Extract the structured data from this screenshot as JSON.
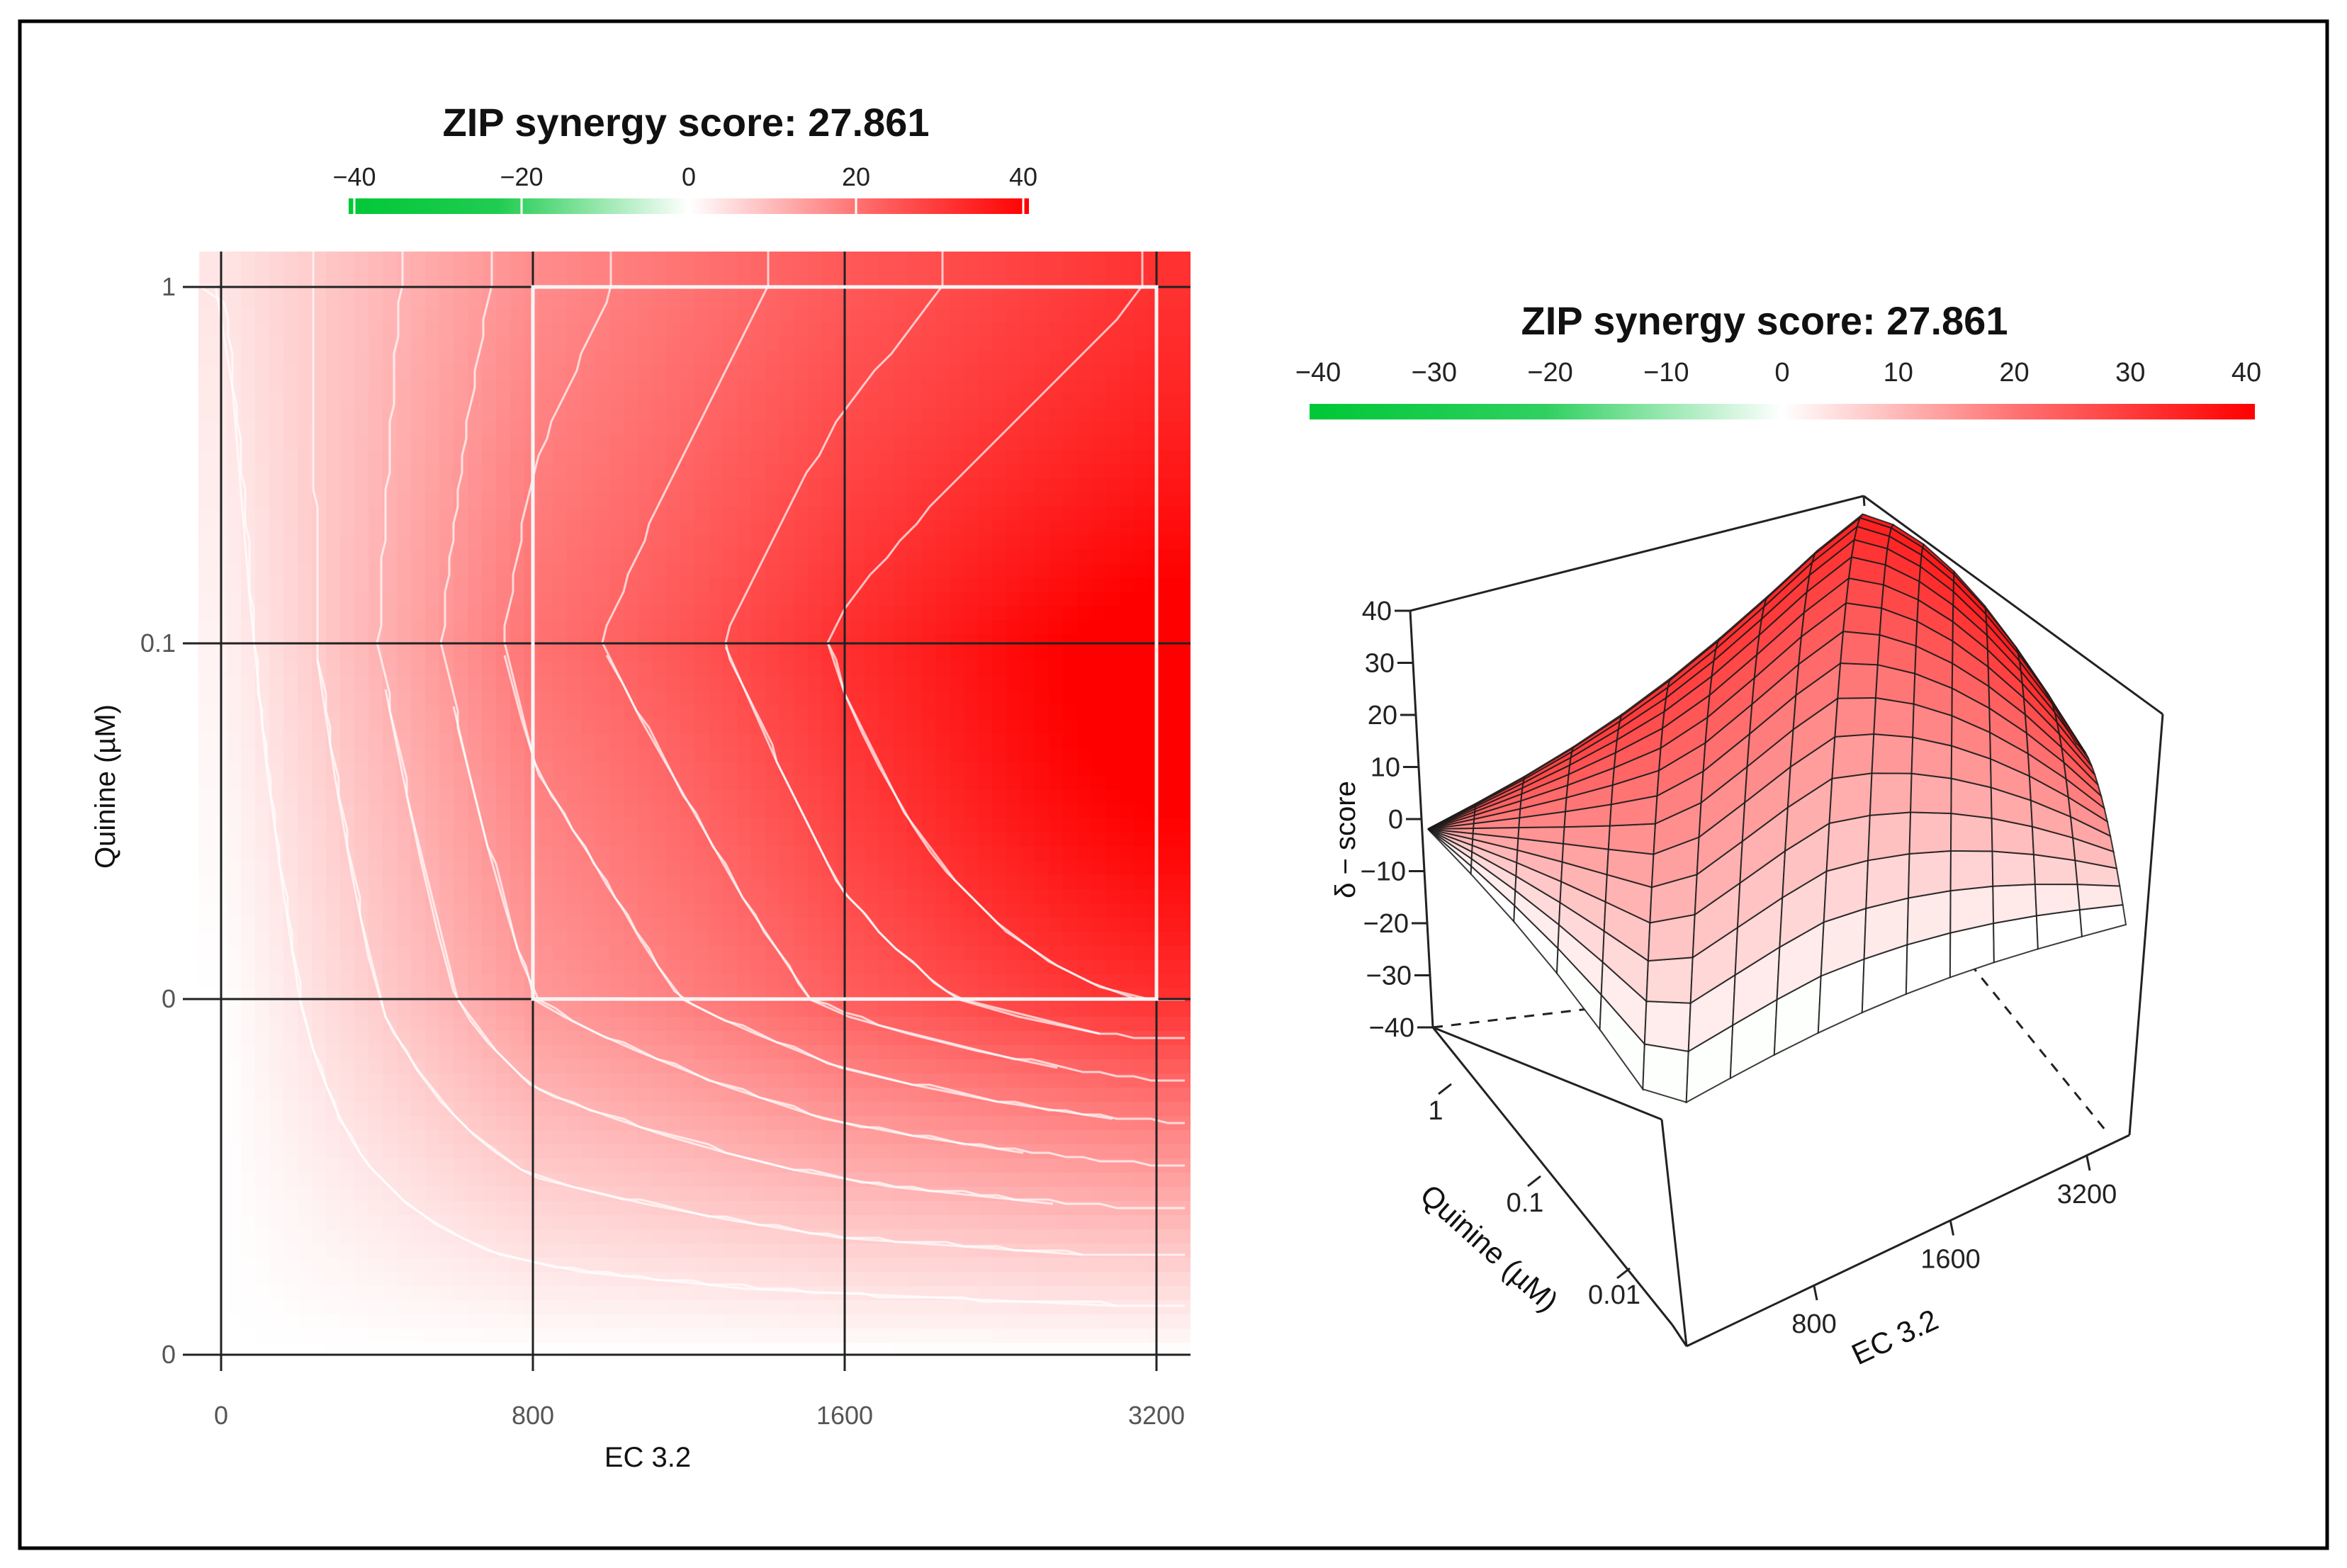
{
  "colors": {
    "neg": "#00c837",
    "mid": "#ffffff",
    "pos": "#ff0000"
  },
  "chart_data": [
    {
      "type": "heatmap",
      "title": "ZIP synergy score: 27.861",
      "xlabel": "EC 3.2",
      "ylabel": "Quinine (µM)",
      "x_ticks": [
        "0",
        "800",
        "1600",
        "3200"
      ],
      "y_ticks": [
        "0",
        "0",
        "0.1",
        "1"
      ],
      "legend": {
        "position": "top",
        "ticks": [
          "−40",
          "−20",
          "0",
          "20",
          "40"
        ],
        "range": [
          -40,
          40
        ]
      },
      "x_doses": [
        0,
        800,
        1600,
        3200
      ],
      "y_doses": [
        0,
        0,
        0.1,
        1
      ],
      "z": [
        [
          0,
          0,
          0,
          0
        ],
        [
          0,
          16,
          24,
          28
        ],
        [
          2,
          22,
          31,
          36
        ],
        [
          4,
          18,
          26,
          32
        ]
      ],
      "peak": {
        "x": 3200,
        "y_index": 1.6,
        "value": 38
      },
      "highlight": {
        "x_range": [
          800,
          3200
        ],
        "y_range_index": [
          1,
          3
        ]
      }
    },
    {
      "type": "surface3d",
      "title": "ZIP synergy score: 27.861",
      "xlabel": "EC 3.2",
      "ylabel": "Quinine (µM)",
      "zlabel": "δ − score",
      "x_ticks": [
        "800",
        "1600",
        "3200"
      ],
      "y_ticks": [
        "1",
        "0.1",
        "0.01"
      ],
      "z_ticks": [
        "40",
        "30",
        "20",
        "10",
        "0",
        "−10",
        "−20",
        "−30",
        "−40"
      ],
      "zlim": [
        -40,
        40
      ],
      "legend": {
        "position": "top",
        "ticks": [
          "−40",
          "−30",
          "−20",
          "−10",
          "0",
          "10",
          "20",
          "30",
          "40"
        ],
        "range": [
          -40,
          40
        ]
      }
    }
  ]
}
